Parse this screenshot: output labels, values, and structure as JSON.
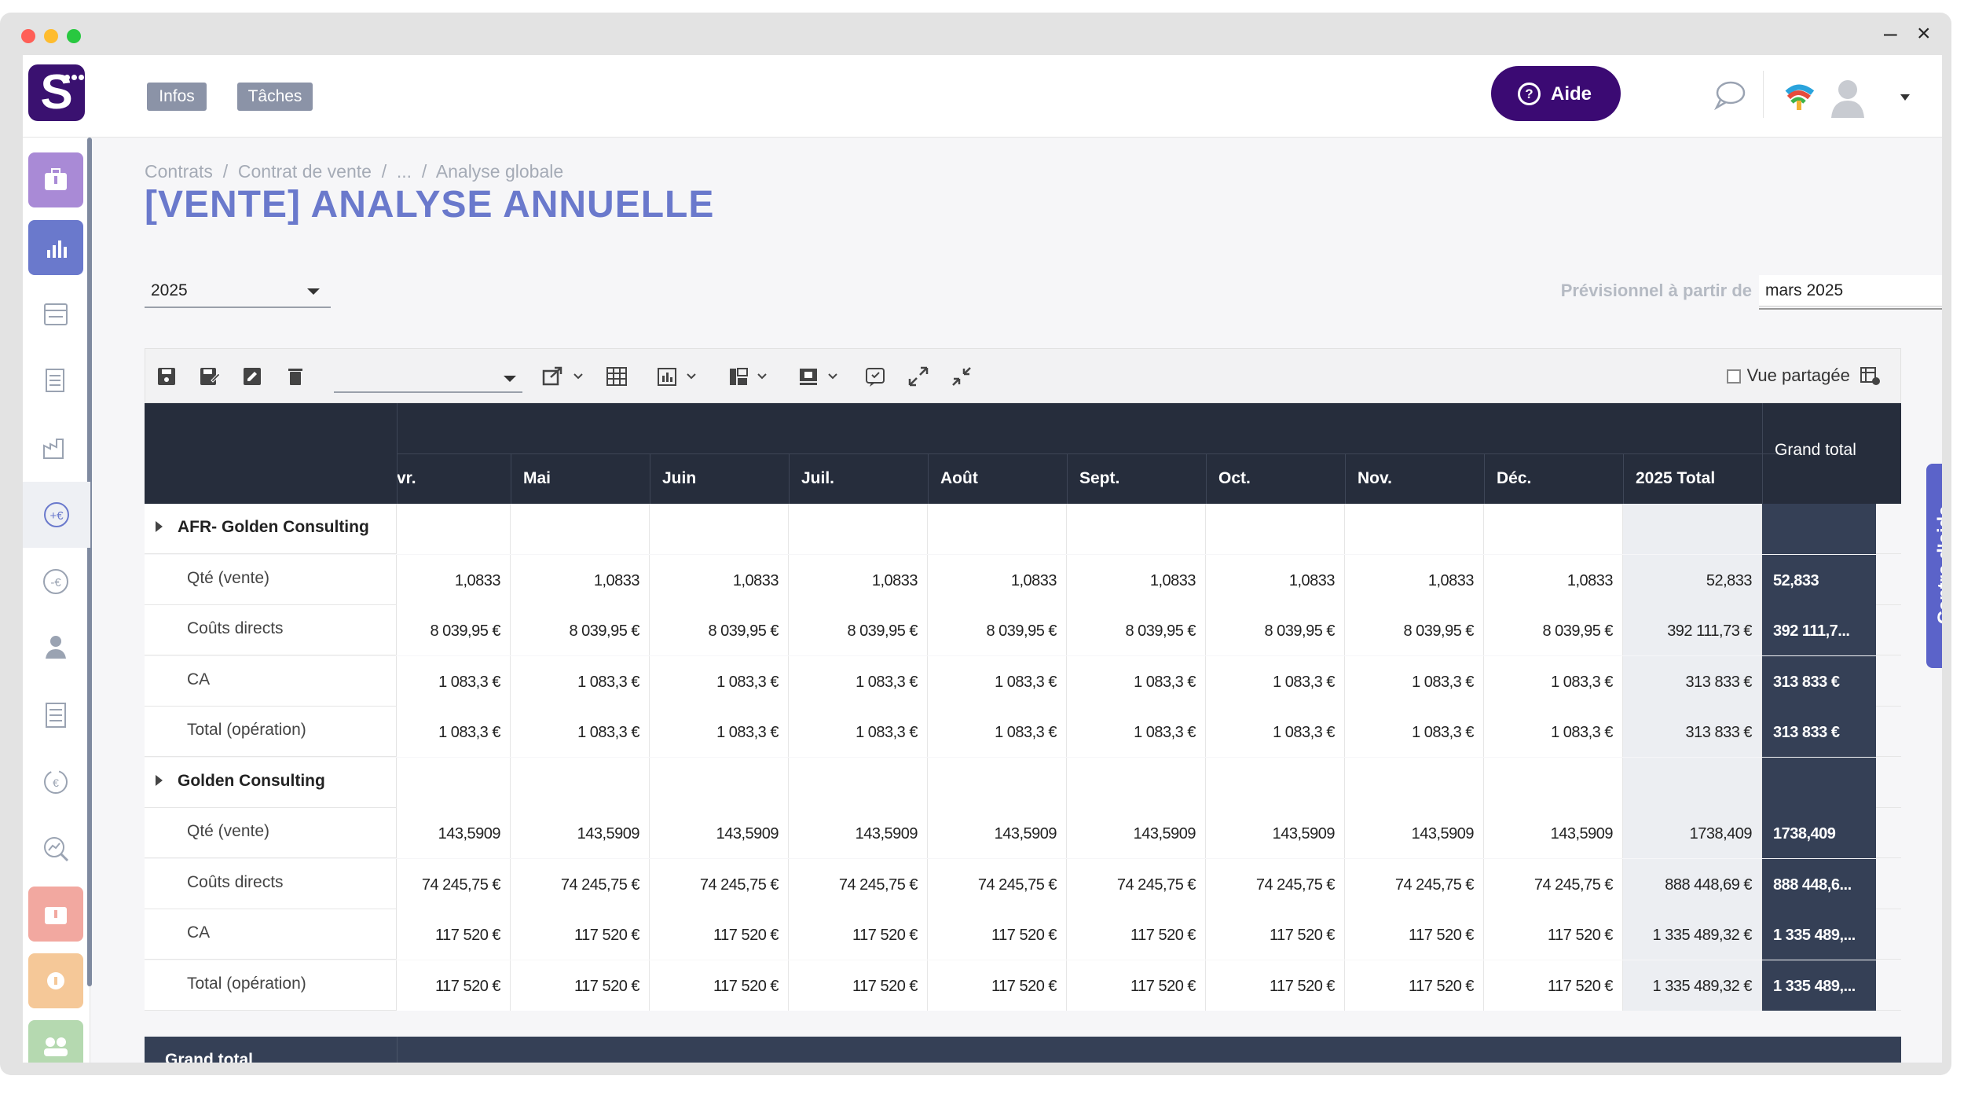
{
  "header": {
    "infos_label": "Infos",
    "taches_label": "Tâches",
    "aide_label": "Aide"
  },
  "breadcrumb": [
    "Contrats",
    "Contrat de vente",
    "...",
    "Analyse globale"
  ],
  "page_title": "[VENTE] ANALYSE ANNUELLE",
  "filters": {
    "year": "2025",
    "prev_label": "Prévisionnel à partir de",
    "prev_value": "mars 2025"
  },
  "toolbar": {
    "vue_partagee": "Vue partagée"
  },
  "table": {
    "columns": [
      "vr.",
      "Mai",
      "Juin",
      "Juil.",
      "Août",
      "Sept.",
      "Oct.",
      "Nov.",
      "Déc.",
      "2025 Total",
      "Grand total"
    ],
    "groups": [
      {
        "name": "AFR- Golden Consulting",
        "rows": [
          {
            "label": "Qté (vente)",
            "values": [
              "1,0833",
              "1,0833",
              "1,0833",
              "1,0833",
              "1,0833",
              "1,0833",
              "1,0833",
              "1,0833",
              "1,0833",
              "52,833",
              "52,833"
            ]
          },
          {
            "label": "Coûts directs",
            "values": [
              "8 039,95 €",
              "8 039,95 €",
              "8 039,95 €",
              "8 039,95 €",
              "8 039,95 €",
              "8 039,95 €",
              "8 039,95 €",
              "8 039,95 €",
              "8 039,95 €",
              "392 111,73 €",
              "392 111,7..."
            ]
          },
          {
            "label": "CA",
            "values": [
              "1 083,3 €",
              "1 083,3 €",
              "1 083,3 €",
              "1 083,3 €",
              "1 083,3 €",
              "1 083,3 €",
              "1 083,3 €",
              "1 083,3 €",
              "1 083,3 €",
              "313 833 €",
              "313 833 €"
            ]
          },
          {
            "label": "Total (opération)",
            "values": [
              "1 083,3 €",
              "1 083,3 €",
              "1 083,3 €",
              "1 083,3 €",
              "1 083,3 €",
              "1 083,3 €",
              "1 083,3 €",
              "1 083,3 €",
              "1 083,3 €",
              "313 833 €",
              "313 833 €"
            ]
          }
        ]
      },
      {
        "name": "Golden Consulting",
        "rows": [
          {
            "label": "Qté (vente)",
            "values": [
              "143,5909",
              "143,5909",
              "143,5909",
              "143,5909",
              "143,5909",
              "143,5909",
              "143,5909",
              "143,5909",
              "143,5909",
              "1738,409",
              "1738,409"
            ]
          },
          {
            "label": "Coûts directs",
            "values": [
              "74 245,75 €",
              "74 245,75 €",
              "74 245,75 €",
              "74 245,75 €",
              "74 245,75 €",
              "74 245,75 €",
              "74 245,75 €",
              "74 245,75 €",
              "74 245,75 €",
              "888 448,69 €",
              "888 448,6..."
            ]
          },
          {
            "label": "CA",
            "values": [
              "117 520 €",
              "117 520 €",
              "117 520 €",
              "117 520 €",
              "117 520 €",
              "117 520 €",
              "117 520 €",
              "117 520 €",
              "117 520 €",
              "1 335 489,32 €",
              "1 335 489,..."
            ]
          },
          {
            "label": "Total (opération)",
            "values": [
              "117 520 €",
              "117 520 €",
              "117 520 €",
              "117 520 €",
              "117 520 €",
              "117 520 €",
              "117 520 €",
              "117 520 €",
              "117 520 €",
              "1 335 489,32 €",
              "1 335 489,..."
            ]
          }
        ]
      }
    ],
    "grand_total_label": "Grand total"
  },
  "help_tab": "Centre d'aide",
  "colors": {
    "brand": "#3b0a73",
    "title": "#6a79cc",
    "header": "#262d3c",
    "grand": "#354056"
  }
}
